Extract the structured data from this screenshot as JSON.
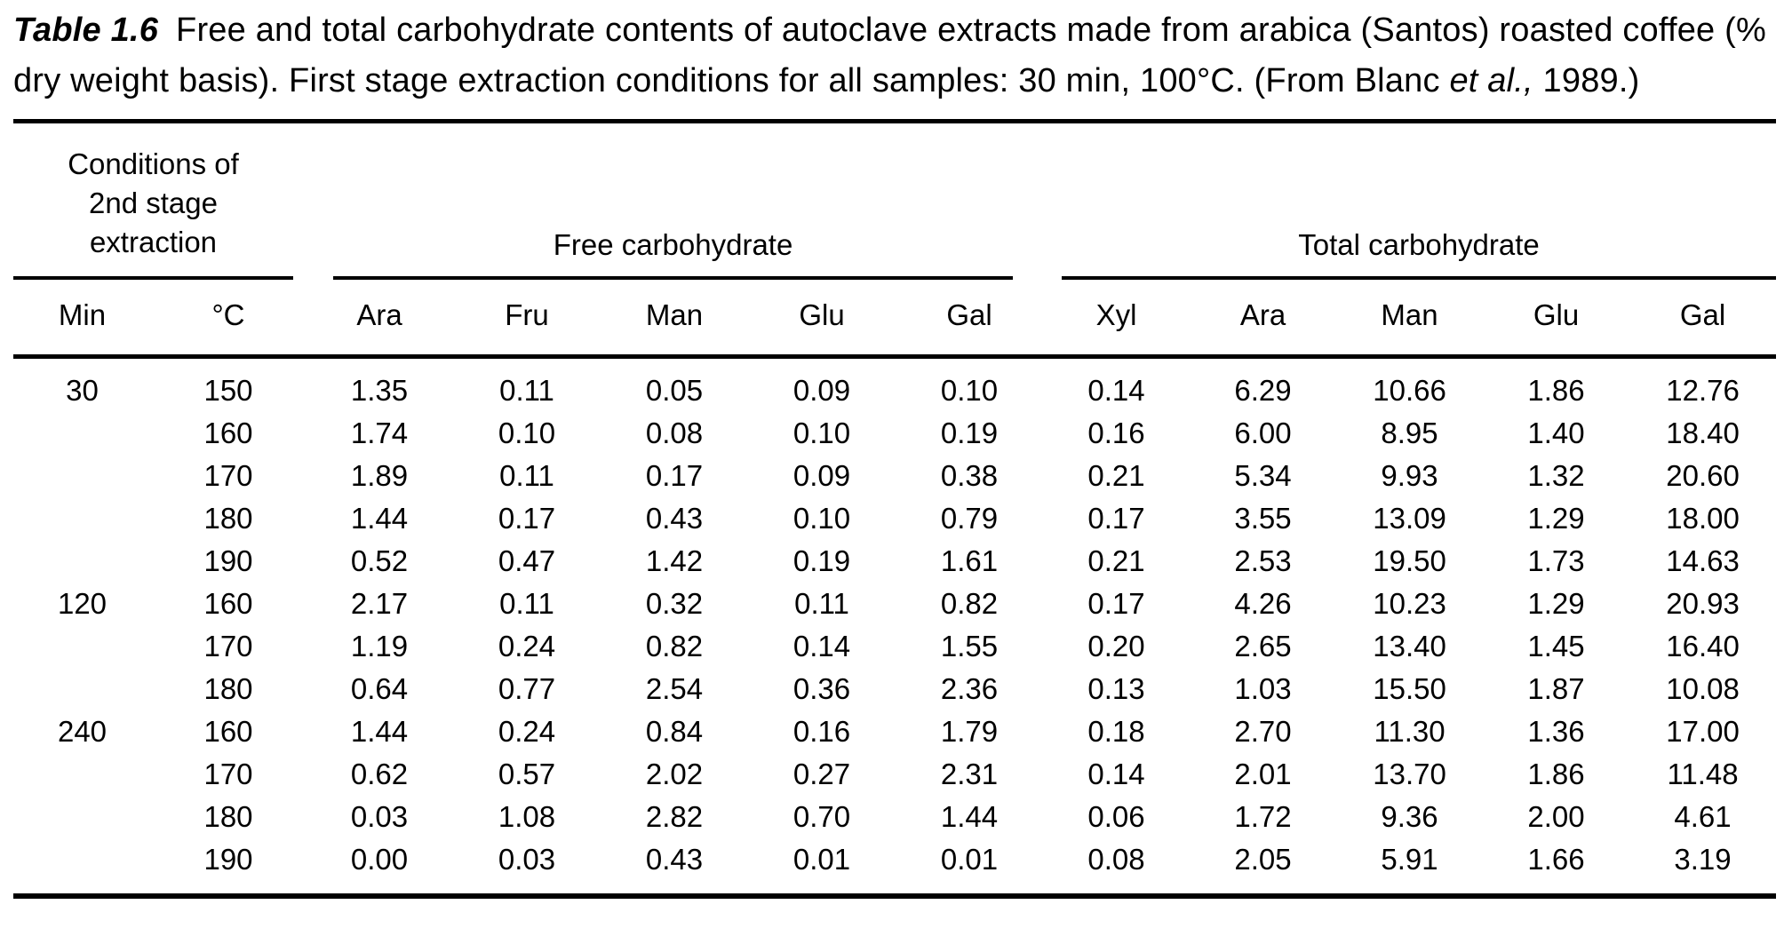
{
  "caption": {
    "label": "Table 1.6",
    "body": "Free and total carbohydrate contents of autoclave extracts made from arabica (Santos) roasted coffee (% dry weight basis). First stage extraction conditions for all samples: 30 min, 100°C. (From Blanc ",
    "etal": "et al.,",
    "tail": " 1989.)"
  },
  "table": {
    "group_headers": [
      {
        "label": "Conditions of 2nd stage extraction",
        "colspan": 2
      },
      {
        "label": "Free carbohydrate",
        "colspan": 5
      },
      {
        "label": "Total carbohydrate",
        "colspan": 5
      }
    ],
    "columns": [
      "Min",
      "°C",
      "Ara",
      "Fru",
      "Man",
      "Glu",
      "Gal",
      "Xyl",
      "Ara",
      "Man",
      "Glu",
      "Gal"
    ],
    "rows": [
      [
        "30",
        "150",
        "1.35",
        "0.11",
        "0.05",
        "0.09",
        "0.10",
        "0.14",
        "6.29",
        "10.66",
        "1.86",
        "12.76"
      ],
      [
        "",
        "160",
        "1.74",
        "0.10",
        "0.08",
        "0.10",
        "0.19",
        "0.16",
        "6.00",
        "8.95",
        "1.40",
        "18.40"
      ],
      [
        "",
        "170",
        "1.89",
        "0.11",
        "0.17",
        "0.09",
        "0.38",
        "0.21",
        "5.34",
        "9.93",
        "1.32",
        "20.60"
      ],
      [
        "",
        "180",
        "1.44",
        "0.17",
        "0.43",
        "0.10",
        "0.79",
        "0.17",
        "3.55",
        "13.09",
        "1.29",
        "18.00"
      ],
      [
        "",
        "190",
        "0.52",
        "0.47",
        "1.42",
        "0.19",
        "1.61",
        "0.21",
        "2.53",
        "19.50",
        "1.73",
        "14.63"
      ],
      [
        "120",
        "160",
        "2.17",
        "0.11",
        "0.32",
        "0.11",
        "0.82",
        "0.17",
        "4.26",
        "10.23",
        "1.29",
        "20.93"
      ],
      [
        "",
        "170",
        "1.19",
        "0.24",
        "0.82",
        "0.14",
        "1.55",
        "0.20",
        "2.65",
        "13.40",
        "1.45",
        "16.40"
      ],
      [
        "",
        "180",
        "0.64",
        "0.77",
        "2.54",
        "0.36",
        "2.36",
        "0.13",
        "1.03",
        "15.50",
        "1.87",
        "10.08"
      ],
      [
        "240",
        "160",
        "1.44",
        "0.24",
        "0.84",
        "0.16",
        "1.79",
        "0.18",
        "2.70",
        "11.30",
        "1.36",
        "17.00"
      ],
      [
        "",
        "170",
        "0.62",
        "0.57",
        "2.02",
        "0.27",
        "2.31",
        "0.14",
        "2.01",
        "13.70",
        "1.86",
        "11.48"
      ],
      [
        "",
        "180",
        "0.03",
        "1.08",
        "2.82",
        "0.70",
        "1.44",
        "0.06",
        "1.72",
        "9.36",
        "2.00",
        "4.61"
      ],
      [
        "",
        "190",
        "0.00",
        "0.03",
        "0.43",
        "0.01",
        "0.01",
        "0.08",
        "2.05",
        "5.91",
        "1.66",
        "3.19"
      ]
    ]
  }
}
